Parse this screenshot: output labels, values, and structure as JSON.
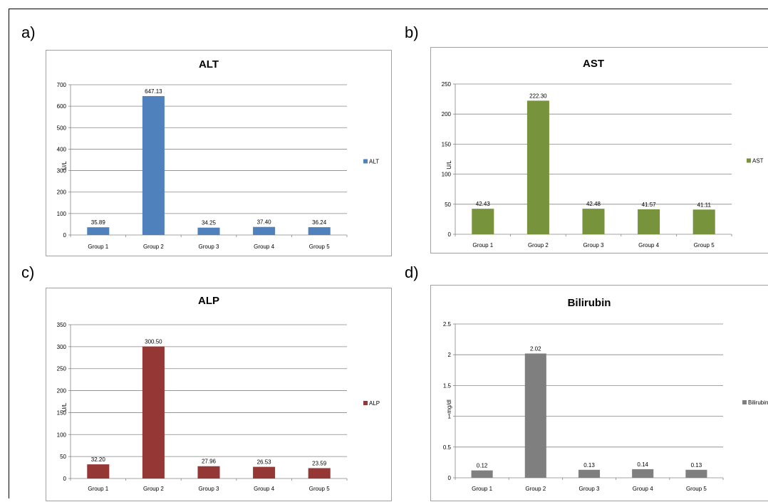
{
  "panels": [
    {
      "letter": "a)"
    },
    {
      "letter": "b)"
    },
    {
      "letter": "c)"
    },
    {
      "letter": "d)"
    }
  ],
  "chart_data": [
    {
      "type": "bar",
      "title": "ALT",
      "categories": [
        "Group 1",
        "Group 2",
        "Group 3",
        "Group 4",
        "Group 5"
      ],
      "series": [
        {
          "name": "ALT",
          "values": [
            35.89,
            647.13,
            34.25,
            37.4,
            36.24
          ],
          "labels": [
            "35.89",
            "647.13",
            "34.25",
            "37.40",
            "36.24"
          ]
        }
      ],
      "color": "#4f81bd",
      "ylabel": "U/L",
      "ylim": [
        0,
        700
      ],
      "yticks": [
        0,
        100,
        200,
        300,
        400,
        500,
        600,
        700
      ],
      "ytick_labels": [
        "0",
        "100",
        "200",
        "300",
        "400",
        "500",
        "600",
        "700"
      ],
      "grid": true,
      "legend": "right"
    },
    {
      "type": "bar",
      "title": "AST",
      "categories": [
        "Group 1",
        "Group 2",
        "Group 3",
        "Group 4",
        "Group 5"
      ],
      "series": [
        {
          "name": "AST",
          "values": [
            42.43,
            222.3,
            42.48,
            41.57,
            41.11
          ],
          "labels": [
            "42.43",
            "222.30",
            "42.48",
            "41.57",
            "41.11"
          ]
        }
      ],
      "color": "#77933c",
      "ylabel": "U/L",
      "ylim": [
        0,
        250
      ],
      "yticks": [
        0,
        50,
        100,
        150,
        200,
        250
      ],
      "ytick_labels": [
        "0",
        "50",
        "100",
        "150",
        "200",
        "250"
      ],
      "grid": true,
      "legend": "right"
    },
    {
      "type": "bar",
      "title": "ALP",
      "categories": [
        "Group 1",
        "Group 2",
        "Group 3",
        "Group 4",
        "Group 5"
      ],
      "series": [
        {
          "name": "ALP",
          "values": [
            32.2,
            300.5,
            27.96,
            26.53,
            23.59
          ],
          "labels": [
            "32.20",
            "300.50",
            "27.96",
            "26.53",
            "23.59"
          ]
        }
      ],
      "color": "#953735",
      "ylabel": "U/L",
      "ylim": [
        0,
        350
      ],
      "yticks": [
        0,
        50,
        100,
        150,
        200,
        250,
        300,
        350
      ],
      "ytick_labels": [
        "0",
        "50",
        "100",
        "150",
        "200",
        "250",
        "300",
        "350"
      ],
      "grid": true,
      "legend": "right"
    },
    {
      "type": "bar",
      "title": "Bilirubin",
      "categories": [
        "Group 1",
        "Group 2",
        "Group 3",
        "Group 4",
        "Group 5"
      ],
      "series": [
        {
          "name": "Bilirubin",
          "values": [
            0.12,
            2.02,
            0.13,
            0.14,
            0.13
          ],
          "labels": [
            "0.12",
            "2.02",
            "0.13",
            "0.14",
            "0.13"
          ]
        }
      ],
      "color": "#7f7f7f",
      "ylabel": "mg/dl",
      "ylim": [
        0,
        2.5
      ],
      "yticks": [
        0,
        0.5,
        1,
        1.5,
        2,
        2.5
      ],
      "ytick_labels": [
        "0",
        "0.5",
        "1",
        "1.5",
        "2",
        "2.5"
      ],
      "grid": true,
      "legend": "right"
    }
  ]
}
